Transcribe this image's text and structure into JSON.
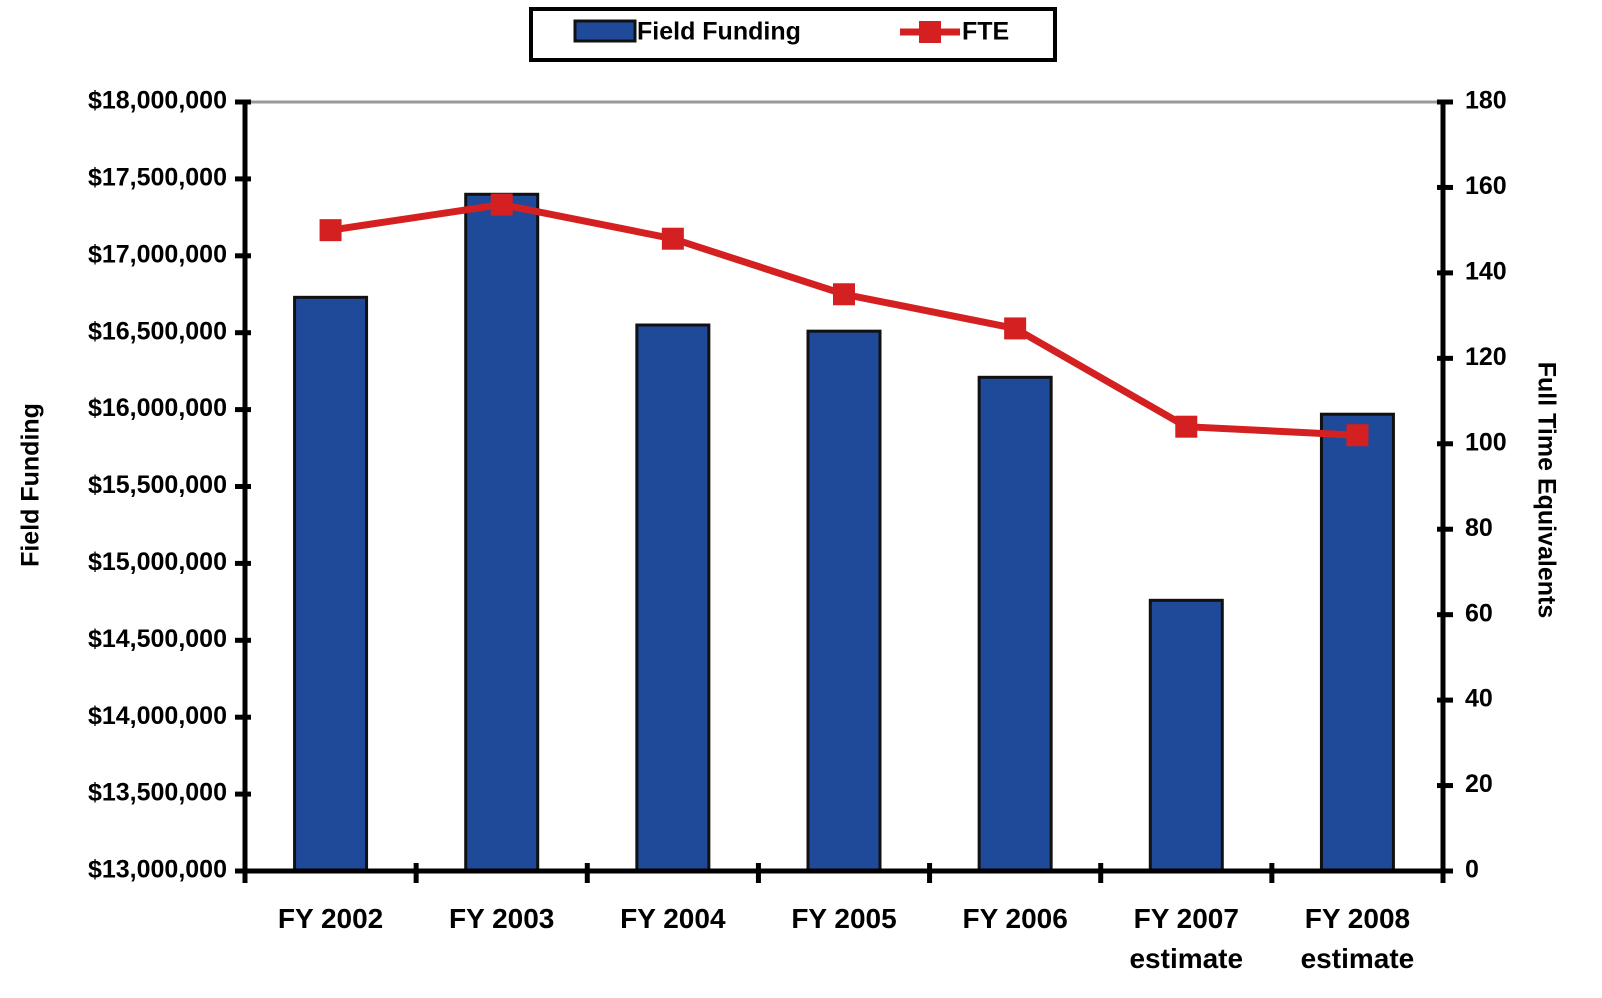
{
  "chart_data": {
    "type": "bar_line",
    "categories": [
      "FY 2002",
      "FY 2003",
      "FY 2004",
      "FY 2005",
      "FY 2006",
      "FY 2007 estimate",
      "FY 2008 estimate"
    ],
    "series": [
      {
        "name": "Field Funding",
        "type": "bar",
        "color": "#1f4a9a",
        "axis": "y",
        "values": [
          16730000,
          17400000,
          16550000,
          16510000,
          16210000,
          14760000,
          15970000
        ]
      },
      {
        "name": "FTE",
        "type": "line",
        "color": "#d42020",
        "axis": "y2",
        "values": [
          150,
          156,
          148,
          135,
          127,
          104,
          102
        ]
      }
    ],
    "y_label": "Field Funding",
    "y2_label": "Full Time Equivalents",
    "ylim": [
      13000000,
      18000000
    ],
    "yticks": [
      {
        "value": 13000000,
        "label": "$13,000,000"
      },
      {
        "value": 13500000,
        "label": "$13,500,000"
      },
      {
        "value": 14000000,
        "label": "$14,000,000"
      },
      {
        "value": 14500000,
        "label": "$14,500,000"
      },
      {
        "value": 15000000,
        "label": "$15,000,000"
      },
      {
        "value": 15500000,
        "label": "$15,500,000"
      },
      {
        "value": 16000000,
        "label": "$16,000,000"
      },
      {
        "value": 16500000,
        "label": "$16,500,000"
      },
      {
        "value": 17000000,
        "label": "$17,000,000"
      },
      {
        "value": 17500000,
        "label": "$17,500,000"
      },
      {
        "value": 18000000,
        "label": "$18,000,000"
      }
    ],
    "y2lim": [
      0,
      180
    ],
    "y2ticks": [
      0,
      20,
      40,
      60,
      80,
      100,
      120,
      140,
      160,
      180
    ],
    "legend": "top",
    "grid": false
  }
}
